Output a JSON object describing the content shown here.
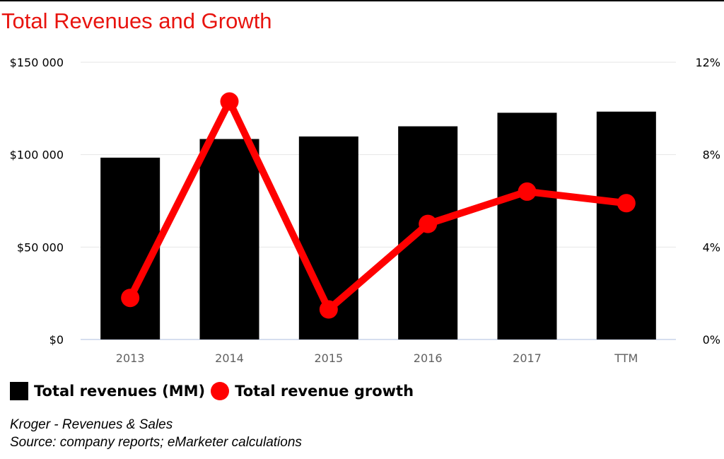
{
  "title": "Total Revenues and Growth",
  "legend": {
    "bar_label": "Total revenues (MM)",
    "line_label": "Total revenue growth"
  },
  "caption": {
    "line1": "Kroger - Revenues & Sales",
    "line2": "Source: company reports; eMarketer calculations"
  },
  "colors": {
    "bars": "#000000",
    "line": "#ff0000",
    "title": "#e8140f"
  },
  "chart_data": {
    "type": "bar",
    "title": "Total Revenues and Growth",
    "categories": [
      "2013",
      "2014",
      "2015",
      "2016",
      "2017",
      "TTM"
    ],
    "series": [
      {
        "name": "Total revenues (MM)",
        "type": "bar",
        "axis": "left",
        "values": [
          98375,
          108465,
          109830,
          115337,
          122662,
          123280
        ]
      },
      {
        "name": "Total revenue growth",
        "type": "line",
        "axis": "right",
        "values": [
          1.8,
          10.3,
          1.3,
          5.0,
          6.4,
          5.9
        ]
      }
    ],
    "y_left": {
      "min": 0,
      "max": 150000,
      "ticks": [
        "$0",
        "$50 000",
        "$100 000",
        "$150 000"
      ]
    },
    "y_right": {
      "min": 0,
      "max": 12,
      "ticks": [
        "0%",
        "4%",
        "8%",
        "12%"
      ]
    },
    "grid": true,
    "legend_position": "bottom-left"
  }
}
